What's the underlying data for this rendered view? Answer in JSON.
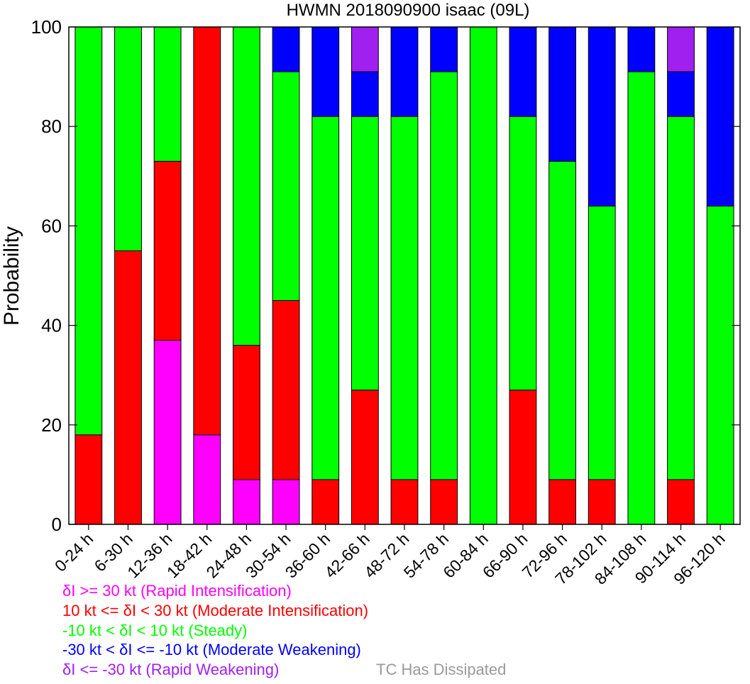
{
  "chart_data": {
    "type": "bar",
    "stacked": true,
    "title": "HWMN 2018090900 isaac (09L)",
    "xlabel": "",
    "ylabel": "Probability",
    "ylim": [
      0,
      100
    ],
    "yticks": [
      "0",
      "20",
      "40",
      "60",
      "80",
      "100"
    ],
    "grid": false,
    "categories": [
      "0-24 h",
      "6-30 h",
      "12-36 h",
      "18-42 h",
      "24-48 h",
      "30-54 h",
      "36-60 h",
      "42-66 h",
      "48-72 h",
      "54-78 h",
      "60-84 h",
      "66-90 h",
      "72-96 h",
      "78-102 h",
      "84-108 h",
      "90-114 h",
      "96-120 h"
    ],
    "series": [
      {
        "name": "δI >= 30 kt (Rapid Intensification)",
        "color": "#ff00ff",
        "values": [
          0,
          0,
          37,
          18,
          9,
          9,
          0,
          0,
          0,
          0,
          0,
          0,
          0,
          0,
          0,
          0,
          0
        ]
      },
      {
        "name": "10 kt <= δI < 30 kt (Moderate Intensification)",
        "color": "#ff0000",
        "values": [
          18,
          55,
          36,
          82,
          27,
          36,
          9,
          27,
          9,
          9,
          0,
          27,
          9,
          9,
          0,
          9,
          0
        ]
      },
      {
        "name": "-10 kt < δI < 10 kt (Steady)",
        "color": "#00ff00",
        "values": [
          82,
          45,
          27,
          0,
          64,
          46,
          73,
          55,
          73,
          82,
          100,
          55,
          64,
          55,
          91,
          73,
          64
        ]
      },
      {
        "name": "-30 kt < δI <= -10 kt (Moderate Weakening)",
        "color": "#0000ff",
        "values": [
          0,
          0,
          0,
          0,
          0,
          9,
          18,
          9,
          18,
          9,
          0,
          18,
          27,
          36,
          9,
          9,
          36
        ]
      },
      {
        "name": "δI <= -30 kt (Rapid Weakening)",
        "color": "#a020f0",
        "values": [
          0,
          0,
          0,
          0,
          0,
          0,
          0,
          9,
          0,
          0,
          0,
          0,
          0,
          0,
          0,
          9,
          0
        ]
      }
    ],
    "extra_legend": {
      "label": "TC Has Dissipated",
      "color": "#999999"
    }
  }
}
